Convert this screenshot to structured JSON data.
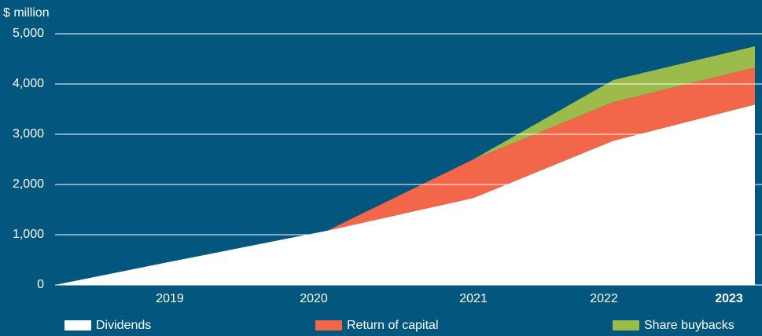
{
  "chart_data": {
    "type": "stacked_area",
    "y_label": "$ million",
    "categories": [
      null,
      "2019",
      "2020",
      "2021",
      "2022",
      "2023"
    ],
    "highlight_category": "2023",
    "series": [
      {
        "name": "Dividends",
        "color": "#ffffff",
        "values": [
          0,
          460,
          1080,
          1730,
          2870,
          3590
        ]
      },
      {
        "name": "Return of capital",
        "color": "#f26649",
        "values": [
          0,
          0,
          0,
          770,
          770,
          740
        ]
      },
      {
        "name": "Share buybacks",
        "color": "#9bbb4a",
        "values": [
          0,
          0,
          0,
          0,
          440,
          420
        ]
      }
    ],
    "ylim": [
      0,
      5000
    ],
    "yticks": [
      {
        "value": 0,
        "label": "0"
      },
      {
        "value": 1000,
        "label": "1,000"
      },
      {
        "value": 2000,
        "label": "2,000"
      },
      {
        "value": 3000,
        "label": "3,000"
      },
      {
        "value": 4000,
        "label": "4,000"
      },
      {
        "value": 5000,
        "label": "5,000"
      }
    ],
    "grid": true,
    "baseline_color": "#e8c02c",
    "legend": "bottom"
  }
}
